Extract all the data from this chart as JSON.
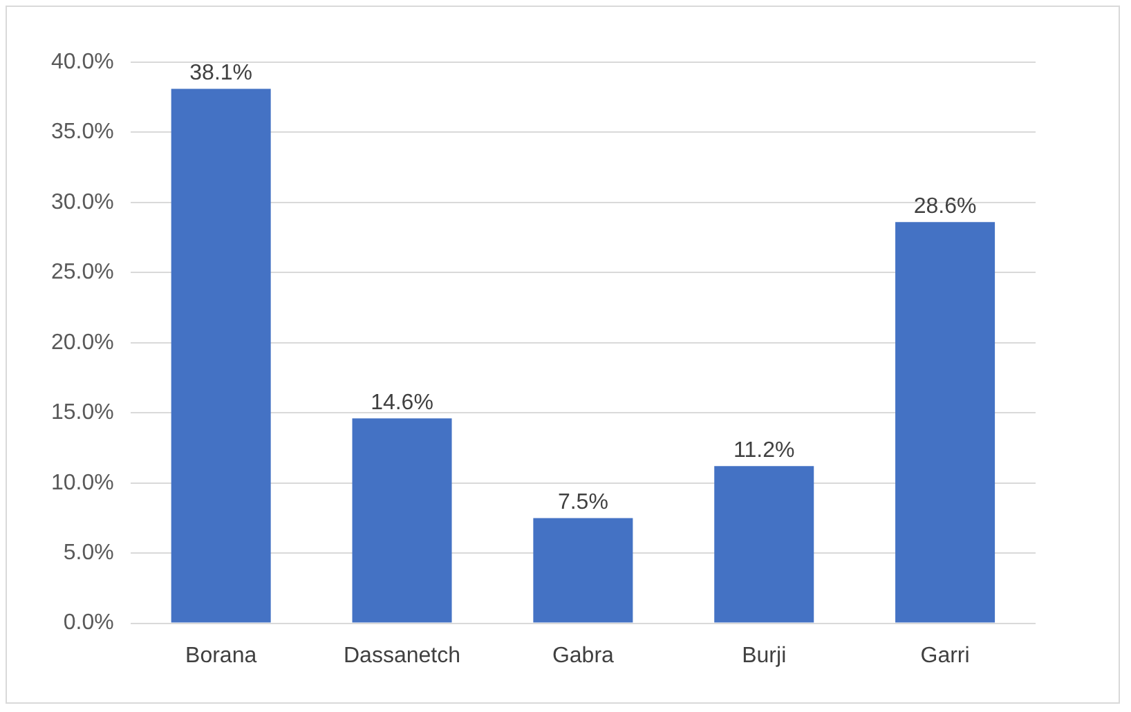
{
  "chart_data": {
    "type": "bar",
    "categories": [
      "Borana",
      "Dassanetch",
      "Gabra",
      "Burji",
      "Garri"
    ],
    "values": [
      38.1,
      14.6,
      7.5,
      11.2,
      28.6
    ],
    "color": "#4472c4",
    "value_labels": [
      "38.1%",
      "14.6%",
      "7.5%",
      "11.2%",
      "28.6%"
    ],
    "ylim": [
      0,
      40
    ],
    "yticks": [
      {
        "value": 0,
        "label": "0.0%"
      },
      {
        "value": 5,
        "label": "5.0%"
      },
      {
        "value": 10,
        "label": "10.0%"
      },
      {
        "value": 15,
        "label": "15.0%"
      },
      {
        "value": 20,
        "label": "20.0%"
      },
      {
        "value": 25,
        "label": "25.0%"
      },
      {
        "value": 30,
        "label": "30.0%"
      },
      {
        "value": 35,
        "label": "35.0%"
      },
      {
        "value": 40,
        "label": "40.0%"
      }
    ],
    "grid": "y"
  }
}
